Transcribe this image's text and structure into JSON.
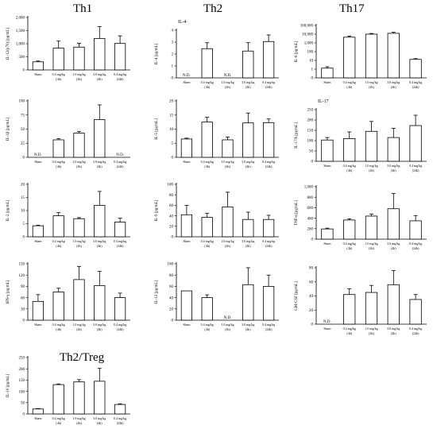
{
  "groups": {
    "th1": "Th1",
    "th2": "Th2",
    "th17": "Th17",
    "th2treg": "Th2/Treg"
  },
  "categories": [
    [
      "Sham",
      ""
    ],
    [
      "0.4 mg/kg",
      "(4h)"
    ],
    [
      "1.0 mg/kg",
      "(4h)"
    ],
    [
      "3.0 mg/kg",
      "(4h)"
    ],
    [
      "0.4 mg/kg",
      "(24h)"
    ]
  ],
  "chart_data": [
    {
      "id": "il12",
      "type": "bar",
      "title": "",
      "ylabel": "IL-12(p70) [pg/mL]",
      "ylim": [
        0,
        2000
      ],
      "yticks": [
        0,
        500,
        1000,
        1500,
        2000
      ],
      "yticklabels": [
        "0",
        "500",
        "1,000",
        "1,500",
        "2,000"
      ],
      "values": [
        310,
        830,
        870,
        1200,
        1010
      ],
      "errors": [
        30,
        270,
        150,
        450,
        290
      ],
      "nd": []
    },
    {
      "id": "il4",
      "type": "bar",
      "title": "IL-4",
      "ylabel": "IL-4 [pg/mL]",
      "ylim": [
        0,
        4
      ],
      "yticks": [
        0,
        1,
        2,
        3,
        4
      ],
      "yticklabels": [
        "0",
        "1",
        "2",
        "3",
        "4"
      ],
      "values": [
        0,
        2.45,
        0,
        2.25,
        3.05
      ],
      "errors": [
        0,
        0.5,
        0,
        0.7,
        0.55
      ],
      "nd": [
        0,
        2
      ]
    },
    {
      "id": "il6",
      "type": "bar",
      "scale": "log",
      "title": "",
      "ylabel": "IL-6 [pg/mL]",
      "ylim": [
        0.1,
        100000
      ],
      "yticks": [
        0.1,
        1,
        10,
        100,
        1000,
        10000,
        100000
      ],
      "yticklabels": [
        "0",
        "1",
        "10",
        "100",
        "1,000",
        "10,000",
        "100,000"
      ],
      "values": [
        1.3,
        4500,
        10000,
        12500,
        13
      ],
      "errors": [
        0.6,
        1500,
        2000,
        4000,
        3
      ],
      "nd": []
    },
    {
      "id": "il1b",
      "type": "bar",
      "title": "",
      "ylabel": "IL-1β [pg/mL]",
      "ylim": [
        0,
        100
      ],
      "yticks": [
        0,
        25,
        50,
        75,
        100
      ],
      "yticklabels": [
        "0",
        "25",
        "50",
        "75",
        "100"
      ],
      "values": [
        0,
        31,
        43,
        67,
        0
      ],
      "errors": [
        0,
        2,
        3,
        26,
        0
      ],
      "nd": [
        0,
        4
      ]
    },
    {
      "id": "il5",
      "type": "bar",
      "title": "",
      "ylabel": "IL-5 [pg/mL]",
      "ylim": [
        0,
        20
      ],
      "yticks": [
        0,
        5,
        10,
        15,
        20
      ],
      "yticklabels": [
        "0",
        "5",
        "10",
        "15",
        "20"
      ],
      "values": [
        6.5,
        12.5,
        6.2,
        12.2,
        12.3
      ],
      "errors": [
        0.3,
        1.7,
        1.0,
        3.5,
        1.3
      ],
      "nd": []
    },
    {
      "id": "il17a",
      "type": "bar",
      "title": "IL-17",
      "ylabel": "IL-17A [pg/mL]",
      "ylim": [
        0,
        250
      ],
      "yticks": [
        0,
        50,
        100,
        150,
        200,
        250
      ],
      "yticklabels": [
        "0",
        "50",
        "100",
        "150",
        "200",
        "250"
      ],
      "values": [
        103,
        110,
        145,
        115,
        173
      ],
      "errors": [
        12,
        32,
        48,
        45,
        50
      ],
      "nd": []
    },
    {
      "id": "il2",
      "type": "bar",
      "title": "",
      "ylabel": "IL-2 [pg/mL]",
      "ylim": [
        0,
        20
      ],
      "yticks": [
        0,
        5,
        10,
        15,
        20
      ],
      "yticklabels": [
        "0",
        "5",
        "10",
        "15",
        "20"
      ],
      "values": [
        4.2,
        8,
        6.9,
        12,
        5.6
      ],
      "errors": [
        0.2,
        1.2,
        0.4,
        5.3,
        1.5
      ],
      "nd": []
    },
    {
      "id": "il9",
      "type": "bar",
      "title": "",
      "ylabel": "IL-9 [pg/mL]",
      "ylim": [
        0,
        100
      ],
      "yticks": [
        0,
        20,
        40,
        60,
        80,
        100
      ],
      "yticklabels": [
        "0",
        "20",
        "40",
        "60",
        "80",
        "100"
      ],
      "values": [
        42,
        37,
        57,
        33,
        33
      ],
      "errors": [
        18,
        8,
        28,
        14,
        8
      ],
      "nd": []
    },
    {
      "id": "tnfa",
      "type": "bar",
      "title": "",
      "ylabel": "TNF-α [pg/mL]",
      "ylim": [
        0,
        1000
      ],
      "yticks": [
        0,
        200,
        400,
        600,
        800,
        1000
      ],
      "yticklabels": [
        "0",
        "200",
        "400",
        "600",
        "800",
        "1,000"
      ],
      "values": [
        195,
        365,
        440,
        580,
        350
      ],
      "errors": [
        15,
        20,
        40,
        290,
        100
      ],
      "nd": []
    },
    {
      "id": "ifng",
      "type": "bar",
      "title": "",
      "ylabel": "IFN-γ [pg/mL]",
      "ylim": [
        0,
        150
      ],
      "yticks": [
        0,
        30,
        60,
        90,
        120,
        150
      ],
      "yticklabels": [
        "0",
        "30",
        "60",
        "90",
        "120",
        "150"
      ],
      "values": [
        50,
        75,
        108,
        92,
        60
      ],
      "errors": [
        18,
        10,
        35,
        38,
        12
      ],
      "nd": []
    },
    {
      "id": "il13",
      "type": "bar",
      "title": "",
      "ylabel": "IL-13 [pg/mL]",
      "ylim": [
        0,
        100
      ],
      "yticks": [
        0,
        20,
        40,
        60,
        80,
        100
      ],
      "yticklabels": [
        "0",
        "20",
        "40",
        "60",
        "80",
        "100"
      ],
      "values": [
        52,
        40,
        0,
        63,
        60
      ],
      "errors": [
        0,
        5,
        0,
        30,
        20
      ],
      "nd": [
        2
      ]
    },
    {
      "id": "gmcsf",
      "type": "bar",
      "title": "",
      "ylabel": "GM-CSF [pg/mL]",
      "ylim": [
        0,
        80
      ],
      "yticks": [
        0,
        20,
        40,
        60,
        80
      ],
      "yticklabels": [
        "0",
        "20",
        "40",
        "60",
        "80"
      ],
      "values": [
        0,
        42,
        45,
        56,
        35
      ],
      "errors": [
        0,
        8,
        10,
        20,
        7
      ],
      "nd": [
        0
      ]
    },
    {
      "id": "il10",
      "type": "bar",
      "title": "",
      "ylabel": "IL-10 [pg/mL]",
      "ylim": [
        0,
        250
      ],
      "yticks": [
        0,
        50,
        100,
        150,
        200,
        250
      ],
      "yticklabels": [
        "0",
        "50",
        "100",
        "150",
        "200",
        "250"
      ],
      "values": [
        22,
        130,
        142,
        145,
        42
      ],
      "errors": [
        2,
        3,
        10,
        57,
        3
      ],
      "nd": []
    }
  ],
  "nd_label": "N.D."
}
